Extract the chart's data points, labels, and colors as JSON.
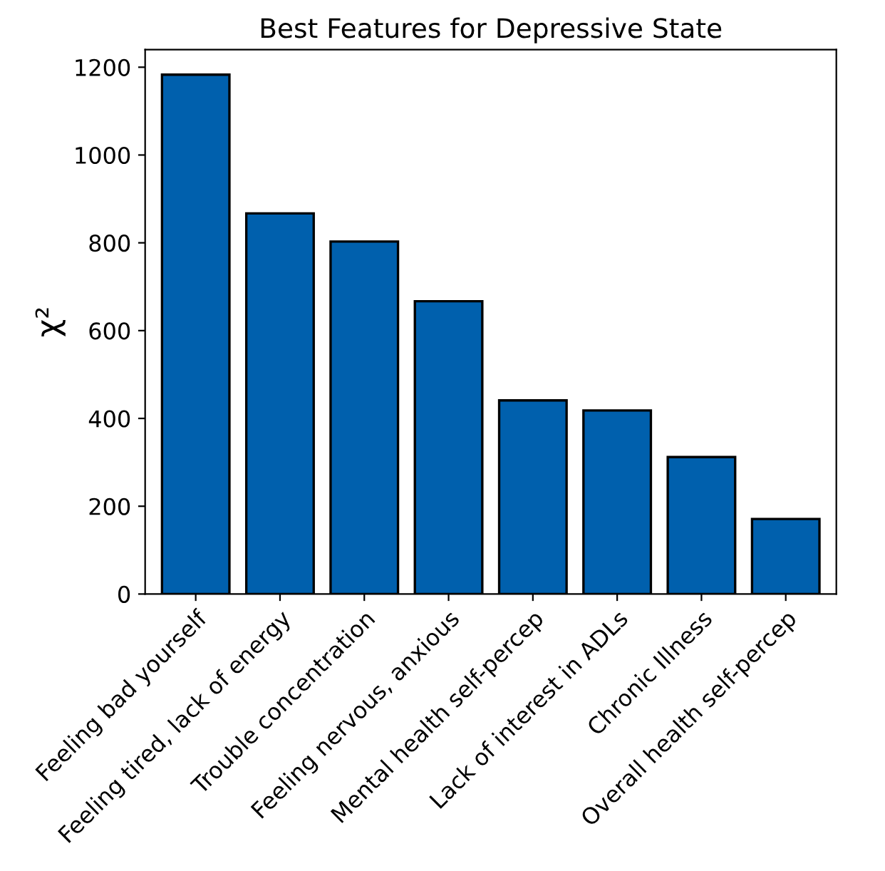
{
  "chart_data": {
    "type": "bar",
    "title": "Best Features for Depressive State",
    "ylabel": "χ²",
    "categories": [
      "Feeling bad yourself",
      "Feeling tired, lack of energy",
      "Trouble concentration",
      "Feeling nervous, anxious",
      "Mental health self-percep",
      "Lack of interest in ADLs",
      "Chronic Illness",
      "Overall health self-percep"
    ],
    "values": [
      1183,
      867,
      803,
      667,
      441,
      418,
      312,
      171
    ],
    "color": "#0060ad",
    "ylim": [
      0,
      1240
    ],
    "yticks": [
      0,
      200,
      400,
      600,
      800,
      1000,
      1200
    ],
    "grid": false,
    "legend": false
  }
}
